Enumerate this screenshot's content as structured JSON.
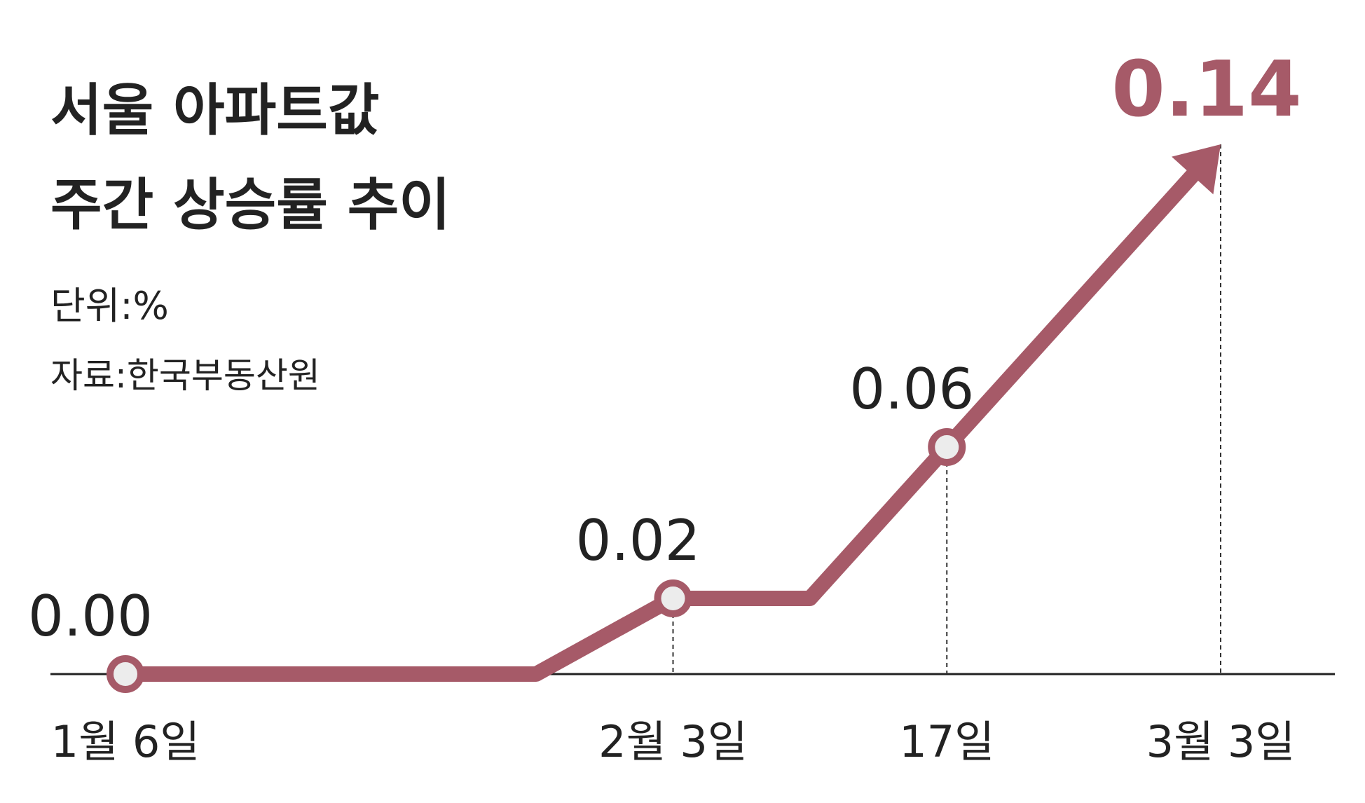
{
  "chart_data": {
    "type": "line",
    "title": [
      "서울 아파트값",
      "주간 상승률 추이"
    ],
    "unit_note": "단위:%",
    "source": "자료:한국부동산원",
    "categories": [
      "1월 6일",
      null,
      null,
      null,
      "2월 3일",
      null,
      "17일",
      null,
      "3월 3일"
    ],
    "series": [
      {
        "name": "서울 아파트값 주간 상승률",
        "color": "#a65a68",
        "values": [
          0,
          0,
          0,
          0,
          0.02,
          0.02,
          0.06,
          0.1,
          0.14
        ],
        "value_labels": [
          "0.00",
          null,
          null,
          null,
          "0.02",
          null,
          "0.06",
          null,
          "0.14"
        ]
      }
    ],
    "ylim": [
      0,
      0.14
    ]
  }
}
